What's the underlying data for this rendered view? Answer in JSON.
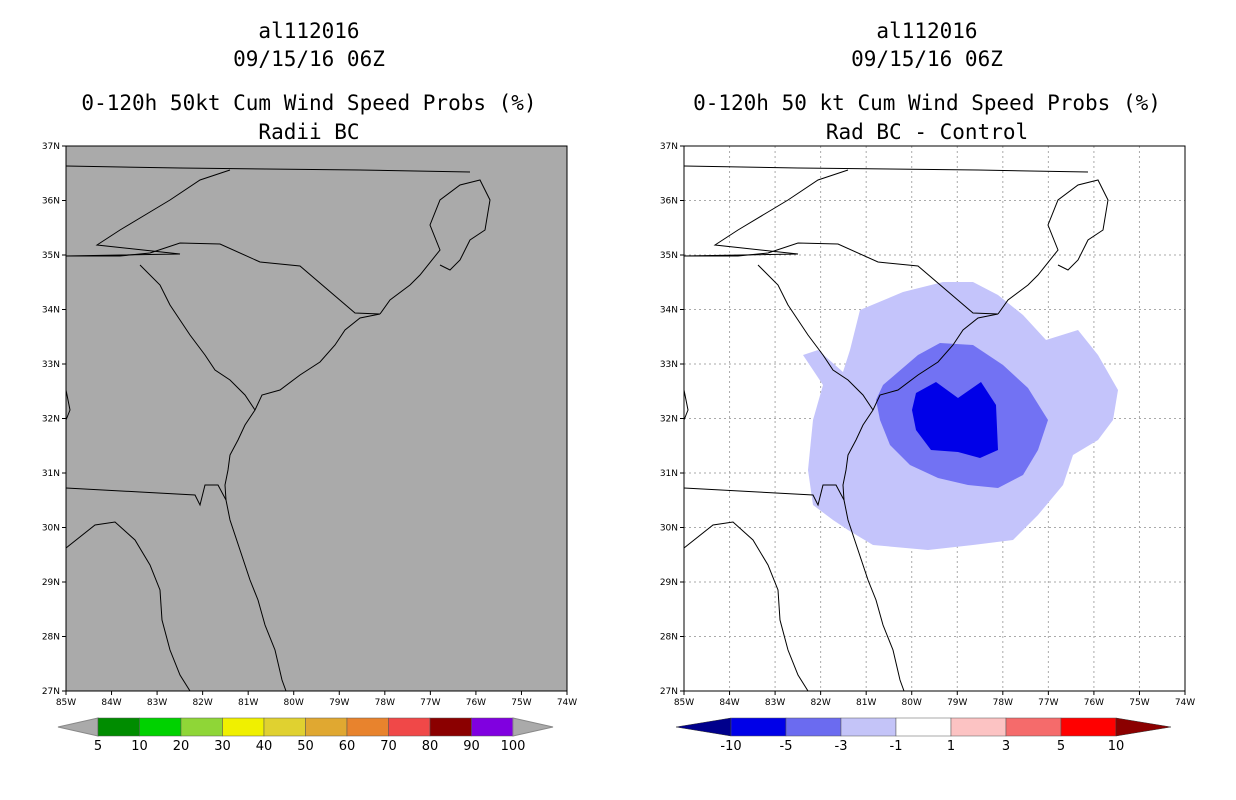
{
  "left_panel": {
    "storm_id": "al112016",
    "datetime": "09/15/16 06Z",
    "title": "0-120h 50kt Cum Wind Speed Probs (%)",
    "subtitle": "Radii BC",
    "background_color": "#aaaaaa",
    "lat_labels": [
      "37N",
      "36N",
      "35N",
      "34N",
      "33N",
      "32N",
      "31N",
      "30N",
      "29N",
      "28N",
      "27N"
    ],
    "lon_labels": [
      "85W",
      "84W",
      "83W",
      "82W",
      "81W",
      "80W",
      "79W",
      "78W",
      "77W",
      "76W",
      "75W",
      "74W"
    ],
    "colorbar": {
      "colors": [
        "#008c00",
        "#00d200",
        "#8fd637",
        "#f0f000",
        "#e0d130",
        "#e0a831",
        "#e8832d",
        "#f04848",
        "#8b0000",
        "#8000e0"
      ],
      "end_color": "#aaaaaa",
      "labels": [
        "5",
        "10",
        "20",
        "30",
        "40",
        "50",
        "60",
        "70",
        "80",
        "90",
        "100"
      ]
    }
  },
  "right_panel": {
    "storm_id": "al112016",
    "datetime": "09/15/16 06Z",
    "title": "0-120h 50 kt Cum Wind Speed Probs (%)",
    "subtitle": "Rad BC - Control",
    "lat_labels": [
      "37N",
      "36N",
      "35N",
      "34N",
      "33N",
      "32N",
      "31N",
      "30N",
      "29N",
      "28N",
      "27N"
    ],
    "lon_labels": [
      "85W",
      "84W",
      "83W",
      "82W",
      "81W",
      "80W",
      "79W",
      "78W",
      "77W",
      "76W",
      "75W",
      "74W"
    ],
    "contour_levels": [
      {
        "range": "-1 to -3",
        "color": "#c4c4fb"
      },
      {
        "range": "-3 to -5",
        "color": "#7272f3"
      },
      {
        "range": "-5 to -10",
        "color": "#0000e8"
      }
    ],
    "colorbar": {
      "colors": [
        "#00008c",
        "#0000e8",
        "#6b6bf0",
        "#c4c4f8",
        "#ffffff",
        "#fcc3c3",
        "#f56b6b",
        "#ff0000",
        "#8b0000"
      ],
      "labels": [
        "-10",
        "-5",
        "-3",
        "-1",
        "1",
        "3",
        "5",
        "10"
      ]
    }
  }
}
